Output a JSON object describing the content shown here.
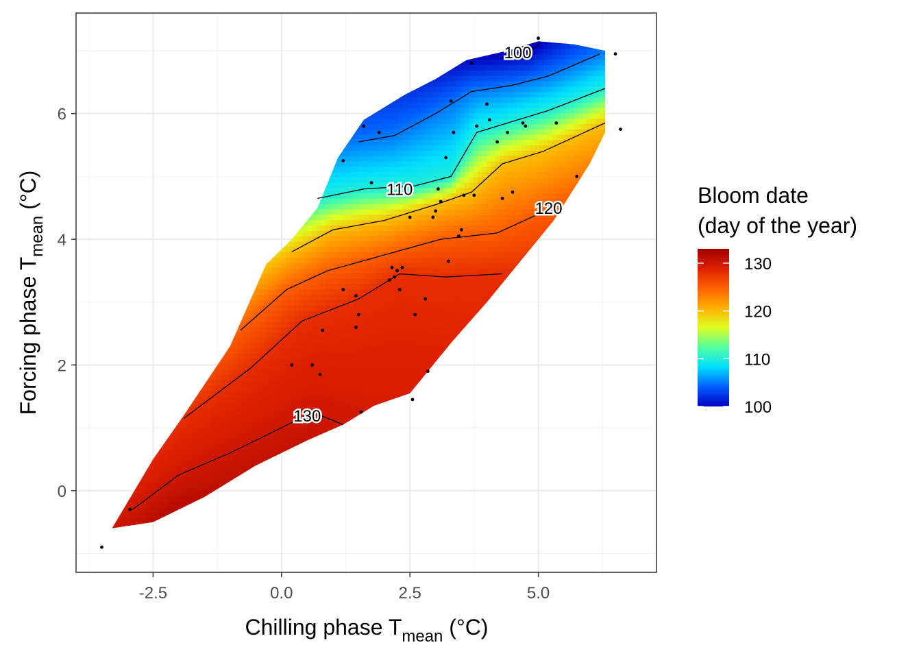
{
  "chart_data": {
    "type": "heatmap",
    "subtype": "filled-contour with observation points",
    "xlabel": {
      "main": "Chilling phase T",
      "sub": "mean",
      "unit": " (°C)"
    },
    "ylabel": {
      "main": "Forcing phase T",
      "sub": "mean",
      "unit": " (°C)"
    },
    "xlim": [
      -4.0,
      7.3
    ],
    "ylim": [
      -1.3,
      7.6
    ],
    "x_ticks": [
      {
        "value": -2.5,
        "label": "-2.5"
      },
      {
        "value": 0.0,
        "label": "0.0"
      },
      {
        "value": 2.5,
        "label": "2.5"
      },
      {
        "value": 5.0,
        "label": "5.0"
      }
    ],
    "y_ticks": [
      {
        "value": 0,
        "label": "0"
      },
      {
        "value": 2,
        "label": "2"
      },
      {
        "value": 4,
        "label": "4"
      },
      {
        "value": 6,
        "label": "6"
      }
    ],
    "grid": true,
    "legend": {
      "title_line1": "Bloom date",
      "title_line2": "(day of the year)",
      "position": "right",
      "range": [
        100,
        133
      ],
      "ticks": [
        {
          "value": 130,
          "label": "130"
        },
        {
          "value": 120,
          "label": "120"
        },
        {
          "value": 110,
          "label": "110"
        },
        {
          "value": 100,
          "label": "100"
        }
      ],
      "colors": [
        "#0000bf",
        "#0060ff",
        "#00dfff",
        "#50ff9f",
        "#dfff20",
        "#ffb000",
        "#ff6000",
        "#df2000",
        "#a00000"
      ]
    },
    "region": {
      "upper": [
        [
          -3.3,
          -0.6
        ],
        [
          -2.5,
          0.5
        ],
        [
          -1.9,
          1.2
        ],
        [
          -1.0,
          2.3
        ],
        [
          -0.3,
          3.6
        ],
        [
          0.2,
          4.0
        ],
        [
          0.7,
          4.5
        ],
        [
          1.1,
          5.3
        ],
        [
          1.6,
          5.9
        ],
        [
          2.4,
          6.3
        ],
        [
          3.0,
          6.55
        ],
        [
          3.6,
          6.85
        ],
        [
          4.4,
          7.0
        ],
        [
          5.0,
          7.15
        ],
        [
          5.7,
          7.1
        ],
        [
          6.3,
          7.0
        ]
      ],
      "lower": [
        [
          -3.3,
          -0.6
        ],
        [
          -2.5,
          -0.5
        ],
        [
          -1.5,
          -0.1
        ],
        [
          -0.5,
          0.4
        ],
        [
          0.5,
          0.8
        ],
        [
          1.2,
          1.05
        ],
        [
          1.8,
          1.35
        ],
        [
          2.5,
          1.55
        ],
        [
          3.3,
          2.35
        ],
        [
          4.0,
          3.0
        ],
        [
          4.6,
          3.6
        ],
        [
          5.3,
          4.3
        ],
        [
          6.0,
          5.2
        ],
        [
          6.3,
          5.7
        ]
      ]
    },
    "contours": [
      {
        "level": 100,
        "label": "100",
        "label_at": [
          4.6,
          6.98
        ],
        "points": [
          [
            4.4,
            6.95
          ],
          [
            4.8,
            6.98
          ],
          [
            5.05,
            7.12
          ]
        ]
      },
      {
        "level": 105,
        "label": "",
        "points": [
          [
            1.5,
            5.55
          ],
          [
            2.2,
            5.65
          ],
          [
            3.0,
            6.0
          ],
          [
            3.7,
            6.35
          ],
          [
            4.5,
            6.45
          ],
          [
            5.2,
            6.6
          ],
          [
            6.2,
            6.95
          ]
        ]
      },
      {
        "level": 110,
        "label": "110",
        "label_at": [
          2.3,
          4.8
        ],
        "points": [
          [
            0.7,
            4.65
          ],
          [
            1.6,
            4.8
          ],
          [
            2.6,
            4.85
          ],
          [
            3.3,
            5.0
          ],
          [
            3.8,
            5.7
          ],
          [
            4.4,
            5.85
          ],
          [
            5.2,
            6.05
          ],
          [
            6.3,
            6.4
          ]
        ]
      },
      {
        "level": 120,
        "label": "120",
        "label_at": [
          5.2,
          4.5
        ],
        "points": [
          [
            0.2,
            3.8
          ],
          [
            1.0,
            4.15
          ],
          [
            2.0,
            4.3
          ],
          [
            3.0,
            4.55
          ],
          [
            3.7,
            4.75
          ],
          [
            4.3,
            5.2
          ],
          [
            5.1,
            5.4
          ],
          [
            6.3,
            5.85
          ]
        ]
      },
      {
        "level": 125,
        "label": "",
        "points": [
          [
            -0.8,
            2.55
          ],
          [
            0.1,
            3.2
          ],
          [
            0.9,
            3.5
          ],
          [
            2.0,
            3.75
          ],
          [
            3.1,
            4.0
          ],
          [
            4.2,
            4.1
          ],
          [
            5.0,
            4.4
          ]
        ]
      },
      {
        "level": 128,
        "label": "",
        "points": [
          [
            -1.9,
            1.15
          ],
          [
            -0.6,
            1.95
          ],
          [
            0.4,
            2.7
          ],
          [
            1.5,
            3.05
          ],
          [
            2.3,
            3.45
          ],
          [
            3.2,
            3.4
          ],
          [
            4.3,
            3.45
          ]
        ]
      },
      {
        "level": 130,
        "label": "130",
        "label_at": [
          0.5,
          1.2
        ],
        "points": [
          [
            -2.9,
            -0.3
          ],
          [
            -2.0,
            0.25
          ],
          [
            -1.0,
            0.6
          ],
          [
            0.0,
            1.0
          ],
          [
            0.6,
            1.25
          ],
          [
            1.2,
            1.05
          ]
        ]
      }
    ],
    "observations": [
      [
        -3.5,
        -0.9
      ],
      [
        -2.95,
        -0.3
      ],
      [
        0.2,
        2.0
      ],
      [
        0.6,
        2.0
      ],
      [
        0.75,
        1.85
      ],
      [
        0.8,
        2.55
      ],
      [
        1.2,
        3.2
      ],
      [
        1.45,
        2.6
      ],
      [
        1.45,
        3.1
      ],
      [
        1.5,
        2.8
      ],
      [
        1.55,
        1.25
      ],
      [
        1.6,
        5.8
      ],
      [
        1.75,
        4.9
      ],
      [
        1.9,
        5.7
      ],
      [
        2.1,
        3.35
      ],
      [
        2.15,
        3.55
      ],
      [
        2.2,
        3.4
      ],
      [
        2.25,
        3.5
      ],
      [
        2.3,
        3.2
      ],
      [
        2.5,
        4.35
      ],
      [
        2.55,
        1.45
      ],
      [
        2.6,
        2.8
      ],
      [
        2.8,
        3.05
      ],
      [
        2.85,
        1.9
      ],
      [
        2.95,
        4.35
      ],
      [
        3.0,
        4.45
      ],
      [
        3.05,
        4.8
      ],
      [
        3.1,
        4.6
      ],
      [
        3.2,
        5.3
      ],
      [
        3.3,
        6.2
      ],
      [
        3.35,
        5.7
      ],
      [
        3.45,
        4.05
      ],
      [
        3.5,
        4.15
      ],
      [
        3.55,
        4.7
      ],
      [
        3.7,
        6.8
      ],
      [
        3.75,
        4.7
      ],
      [
        3.8,
        5.8
      ],
      [
        4.0,
        6.15
      ],
      [
        4.05,
        5.9
      ],
      [
        4.2,
        5.55
      ],
      [
        4.3,
        4.65
      ],
      [
        4.4,
        5.7
      ],
      [
        4.5,
        4.75
      ],
      [
        4.7,
        5.85
      ],
      [
        4.75,
        5.8
      ],
      [
        5.0,
        7.2
      ],
      [
        5.35,
        5.85
      ],
      [
        5.75,
        5.0
      ],
      [
        6.5,
        6.95
      ],
      [
        6.6,
        5.75
      ],
      [
        2.35,
        3.55
      ],
      [
        3.25,
        3.65
      ],
      [
        1.2,
        5.25
      ]
    ]
  }
}
